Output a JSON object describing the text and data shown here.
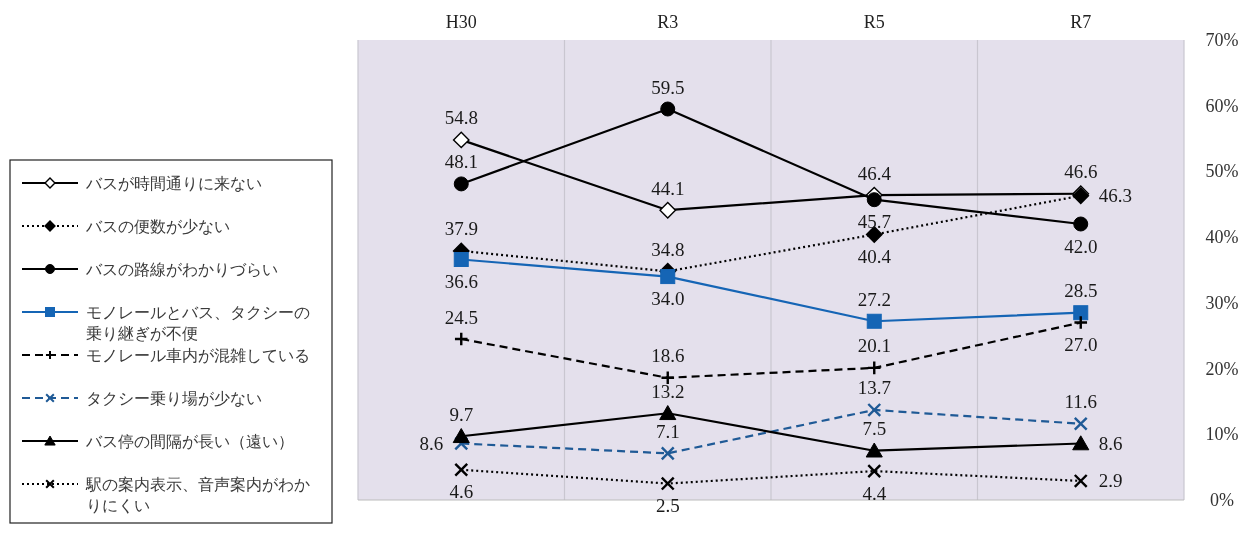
{
  "chart_data": {
    "type": "line",
    "categories": [
      "H30",
      "R3",
      "R5",
      "R7"
    ],
    "ylim": [
      0,
      70
    ],
    "yticks": [
      {
        "value": 0,
        "label": "0%"
      },
      {
        "value": 10,
        "label": "10%"
      },
      {
        "value": 20,
        "label": "20%"
      },
      {
        "value": 30,
        "label": "30%"
      },
      {
        "value": 40,
        "label": "40%"
      },
      {
        "value": 50,
        "label": "50%"
      },
      {
        "value": 60,
        "label": "60%"
      },
      {
        "value": 70,
        "label": "70%"
      }
    ],
    "grid": "x",
    "legend": "left",
    "series": [
      {
        "name": "バスが時間通りに来ない",
        "color": "#000000",
        "values": [
          54.8,
          44.1,
          46.4,
          46.6
        ],
        "value_labels": [
          "54.8",
          "44.1",
          "46.4",
          "46.6"
        ],
        "marker": "diamond",
        "line_style": "solid"
      },
      {
        "name": "バスの便数が少ない",
        "color": "#000000",
        "values": [
          37.9,
          34.8,
          40.4,
          46.3
        ],
        "value_labels": [
          "37.9",
          "34.8",
          "40.4",
          "46.3"
        ],
        "marker": "diamond",
        "line_style": "dotted"
      },
      {
        "name": "バスの路線がわかりづらい",
        "color": "#000000",
        "values": [
          48.1,
          59.5,
          45.7,
          42.0
        ],
        "value_labels": [
          "48.1",
          "59.5",
          "45.7",
          "42.0"
        ],
        "marker": "circle",
        "line_style": "solid"
      },
      {
        "name": "モノレールとバス、タクシーの乗り継ぎが不便",
        "color": "#1565b5",
        "values": [
          36.6,
          34.0,
          27.2,
          28.5
        ],
        "value_labels": [
          "36.6",
          "34.0",
          "27.2",
          "28.5"
        ],
        "marker": "square",
        "line_style": "solid"
      },
      {
        "name": "モノレール車内が混雑している",
        "color": "#000000",
        "values": [
          24.5,
          18.6,
          20.1,
          27.0
        ],
        "value_labels": [
          "24.5",
          "18.6",
          "20.1",
          "27.0"
        ],
        "marker": "plus",
        "line_style": "dashed"
      },
      {
        "name": "タクシー乗り場が少ない",
        "color": "#1f5a96",
        "values": [
          8.6,
          7.1,
          13.7,
          11.6
        ],
        "value_labels": [
          "8.6",
          "7.1",
          "13.7",
          "11.6"
        ],
        "marker": "cross",
        "line_style": "dashed"
      },
      {
        "name": "バス停の間隔が長い（遠い）",
        "color": "#000000",
        "values": [
          9.7,
          13.2,
          7.5,
          8.6
        ],
        "value_labels": [
          "9.7",
          "13.2",
          "7.5",
          "8.6"
        ],
        "marker": "triangle",
        "line_style": "solid"
      },
      {
        "name": "駅の案内表示、音声案内がわかりにくい",
        "color": "#000000",
        "values": [
          4.6,
          2.5,
          4.4,
          2.9
        ],
        "value_labels": [
          "4.6",
          "2.5",
          "4.4",
          "2.9"
        ],
        "marker": "cross",
        "line_style": "dotted"
      }
    ]
  }
}
